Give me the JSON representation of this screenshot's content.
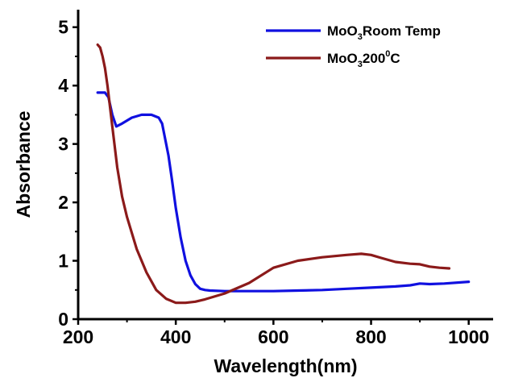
{
  "chart_data": {
    "type": "line",
    "title": "",
    "xlabel": "Wavelength(nm)",
    "ylabel": "Absorbance",
    "xlim": [
      200,
      1050
    ],
    "ylim": [
      0,
      5.3
    ],
    "xticks": [
      200,
      400,
      600,
      800,
      1000
    ],
    "yticks": [
      0,
      1,
      2,
      3,
      4,
      5
    ],
    "grid": false,
    "legend_position": "top-right",
    "series": [
      {
        "legend": {
          "base": "MoO",
          "sub": "3",
          "rest": "Room Temp"
        },
        "color": "#1010e0",
        "x": [
          240,
          255,
          262,
          270,
          278,
          290,
          310,
          330,
          350,
          365,
          372,
          378,
          385,
          392,
          400,
          410,
          420,
          430,
          440,
          450,
          460,
          470,
          500,
          550,
          600,
          650,
          700,
          750,
          800,
          850,
          880,
          900,
          920,
          950,
          1000
        ],
        "y": [
          3.88,
          3.88,
          3.8,
          3.5,
          3.3,
          3.35,
          3.45,
          3.5,
          3.5,
          3.45,
          3.35,
          3.1,
          2.8,
          2.4,
          1.9,
          1.4,
          1.0,
          0.75,
          0.6,
          0.52,
          0.5,
          0.49,
          0.48,
          0.48,
          0.48,
          0.49,
          0.5,
          0.52,
          0.54,
          0.56,
          0.58,
          0.61,
          0.6,
          0.61,
          0.64
        ]
      },
      {
        "legend": {
          "base": "MoO",
          "sub": "3",
          "rest": "200",
          "sup": "0",
          "tail": "C"
        },
        "color": "#8b1a1a",
        "x": [
          240,
          245,
          250,
          255,
          260,
          270,
          280,
          290,
          300,
          320,
          340,
          360,
          380,
          400,
          420,
          440,
          460,
          500,
          550,
          600,
          650,
          700,
          750,
          780,
          800,
          820,
          850,
          880,
          900,
          920,
          940,
          960
        ],
        "y": [
          4.7,
          4.65,
          4.5,
          4.3,
          4.0,
          3.3,
          2.6,
          2.1,
          1.75,
          1.2,
          0.8,
          0.5,
          0.35,
          0.28,
          0.28,
          0.3,
          0.34,
          0.44,
          0.62,
          0.88,
          1.0,
          1.06,
          1.1,
          1.12,
          1.1,
          1.05,
          0.98,
          0.95,
          0.94,
          0.9,
          0.88,
          0.87
        ]
      }
    ]
  }
}
